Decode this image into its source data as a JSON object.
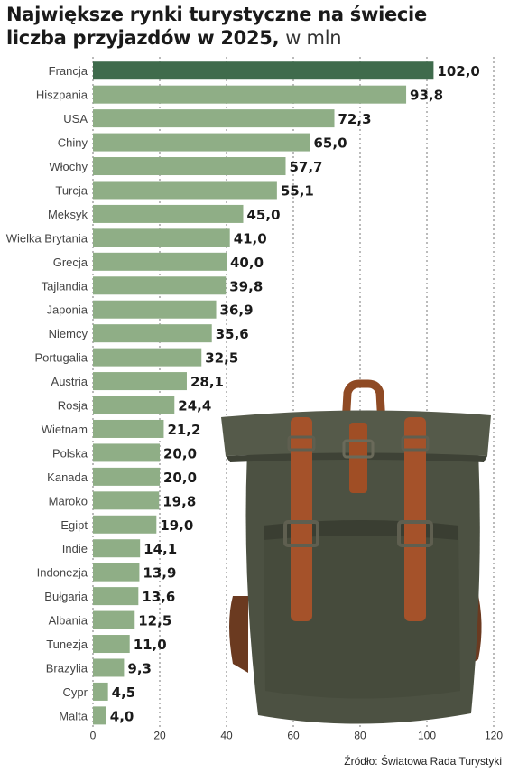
{
  "title": {
    "line1": "Największe rynki turystyczne na świecie",
    "line2": "liczba przyjazdów w 2025,",
    "unit": "w mln"
  },
  "source": "Źródło: Światowa Rada Turystyki",
  "colors": {
    "highlight_bar": "#3f6b4c",
    "bar": "#8fae86",
    "grid": "#777777",
    "backpack_body": "#4c5142",
    "backpack_strap": "#9a4a22"
  },
  "illustration": {
    "name": "backpack-illustration"
  },
  "chart_data": {
    "type": "bar",
    "orientation": "horizontal",
    "categories": [
      "Francja",
      "Hiszpania",
      "USA",
      "Chiny",
      "Włochy",
      "Turcja",
      "Meksyk",
      "Wielka Brytania",
      "Grecja",
      "Tajlandia",
      "Japonia",
      "Niemcy",
      "Portugalia",
      "Austria",
      "Rosja",
      "Wietnam",
      "Polska",
      "Kanada",
      "Maroko",
      "Egipt",
      "Indie",
      "Indonezja",
      "Bułgaria",
      "Albania",
      "Tunezja",
      "Brazylia",
      "Cypr",
      "Malta"
    ],
    "values": [
      102.0,
      93.8,
      72.3,
      65.0,
      57.7,
      55.1,
      45.0,
      41.0,
      40.0,
      39.8,
      36.9,
      35.6,
      32.5,
      28.1,
      24.4,
      21.2,
      20.0,
      20.0,
      19.8,
      19.0,
      14.1,
      13.9,
      13.6,
      12.5,
      11.0,
      9.3,
      4.5,
      4.0
    ],
    "value_labels": [
      "102,0",
      "93,8",
      "72,3",
      "65,0",
      "57,7",
      "55,1",
      "45,0",
      "41,0",
      "40,0",
      "39,8",
      "36,9",
      "35,6",
      "32,5",
      "28,1",
      "24,4",
      "21,2",
      "20,0",
      "20,0",
      "19,8",
      "19,0",
      "14,1",
      "13,9",
      "13,6",
      "12,5",
      "11,0",
      "9,3",
      "4,5",
      "4,0"
    ],
    "xlim": [
      0,
      120
    ],
    "xticks": [
      0,
      20,
      40,
      60,
      80,
      100,
      120
    ],
    "highlight_index": 0,
    "grid": "vertical dashed"
  }
}
